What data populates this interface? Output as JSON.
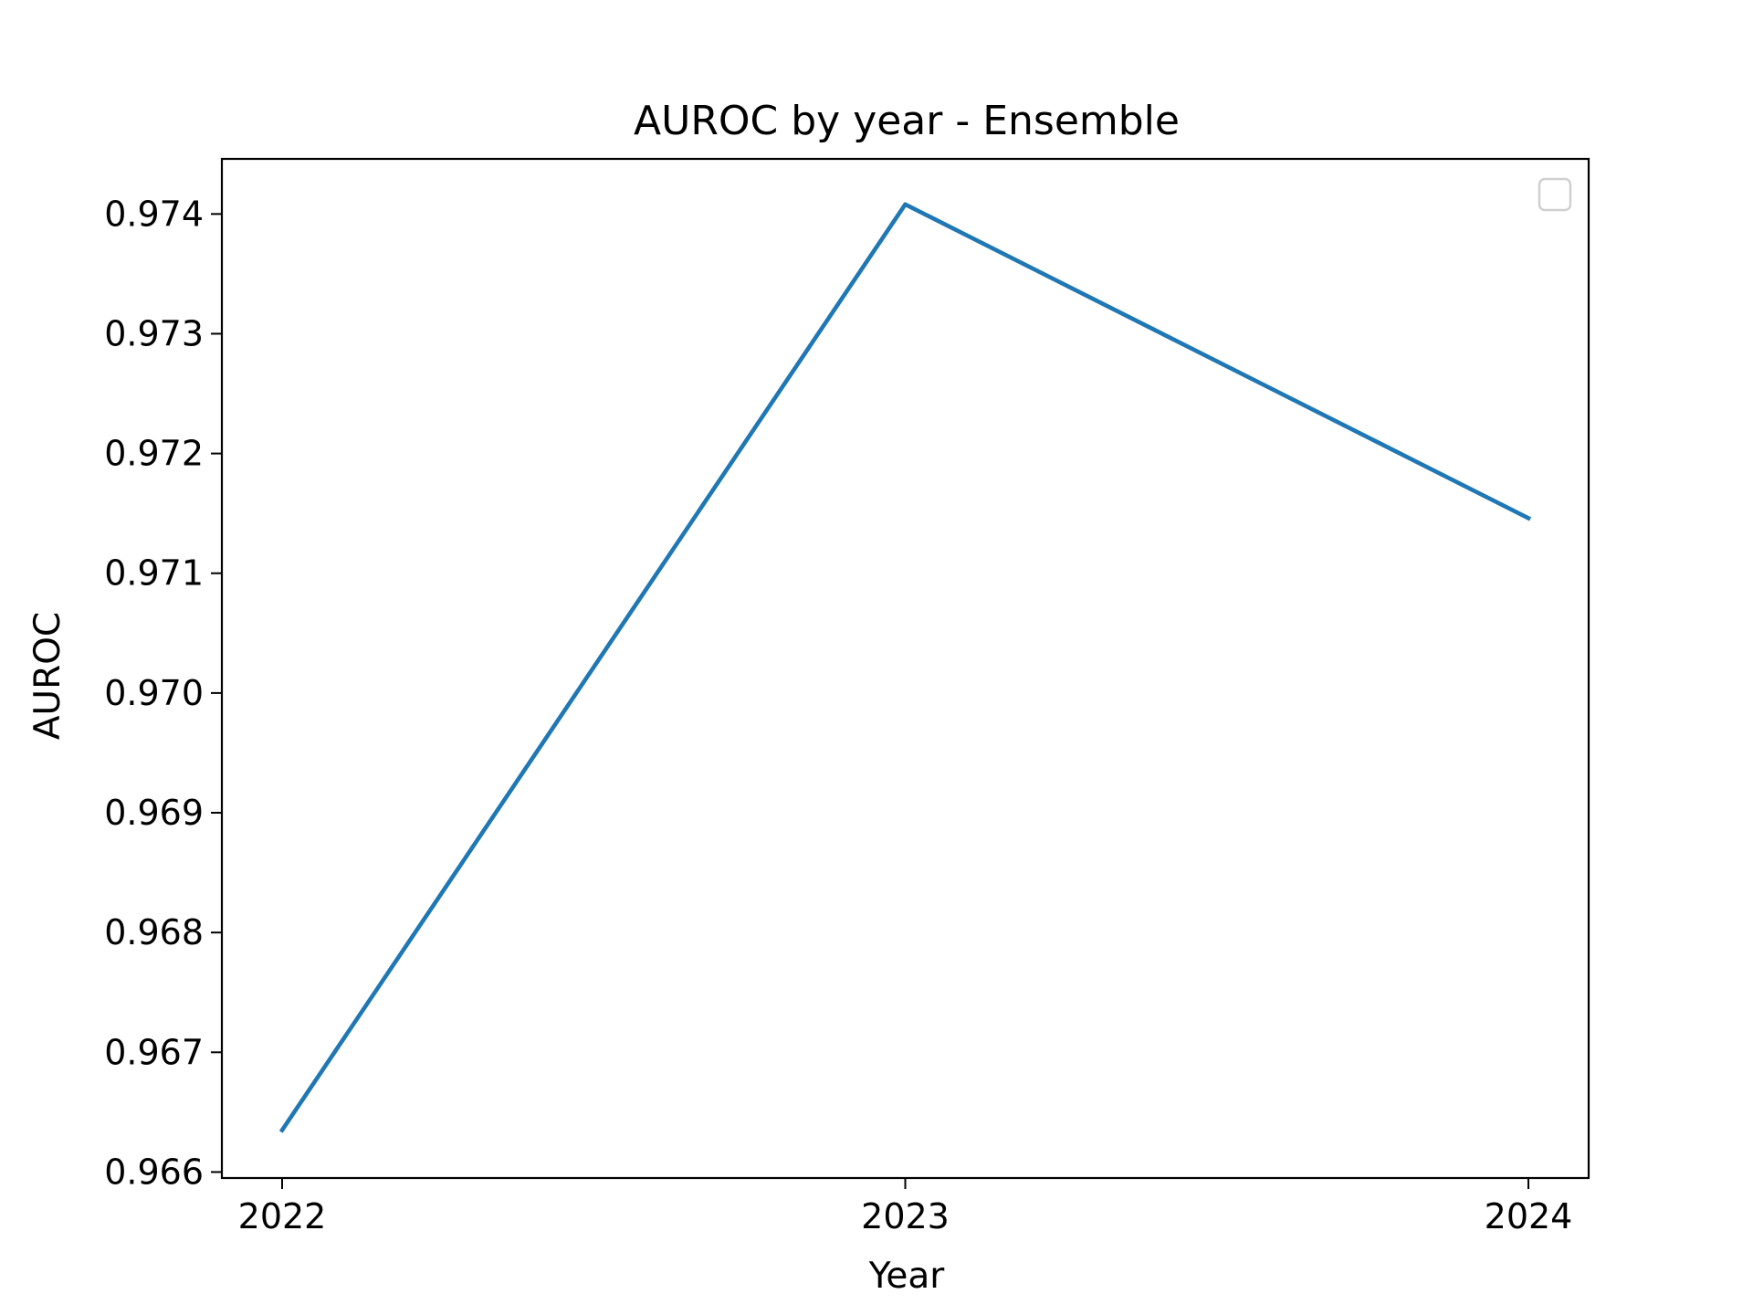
{
  "chart_data": {
    "type": "line",
    "title": "AUROC by year - Ensemble",
    "xlabel": "Year",
    "ylabel": "AUROC",
    "x": [
      "2022",
      "2023",
      "2024"
    ],
    "series": [
      {
        "values": [
          0.96635,
          0.97408,
          0.97146
        ],
        "color": "#1f77b4"
      }
    ],
    "ylim": [
      0.96595,
      0.97446
    ],
    "yticks": [
      "0.966",
      "0.967",
      "0.968",
      "0.969",
      "0.970",
      "0.971",
      "0.972",
      "0.973",
      "0.974"
    ],
    "ytick_values": [
      0.966,
      0.967,
      0.968,
      0.969,
      0.97,
      0.971,
      0.972,
      0.973,
      0.974
    ],
    "grid": false,
    "legend": {
      "position": "top-right",
      "entries": []
    }
  }
}
